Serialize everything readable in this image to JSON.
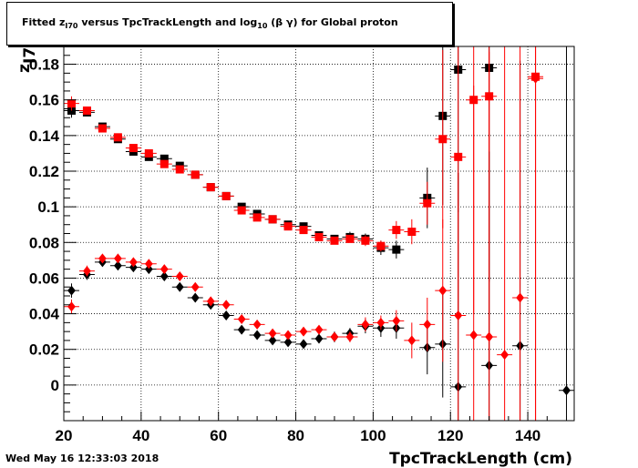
{
  "title": {
    "part1": "Fitted  z",
    "sub1": "I70",
    "part2": "  versus TpcTrackLength and log",
    "sub2": "10",
    "part3": " (β γ) for Global proton"
  },
  "footer": {
    "timestamp": "Wed May 16 12:33:03 2018"
  },
  "colors": {
    "black_series": "#000000",
    "red_series": "#ff0000",
    "grid": "#000000"
  },
  "chart_data": {
    "type": "scatter",
    "title": "Fitted z_I70 versus TpcTrackLength and log10 (β γ) for Global proton",
    "xlabel": "TpcTrackLength (cm)",
    "ylabel": "z_I70",
    "xlim": [
      20,
      152
    ],
    "ylim": [
      -0.02,
      0.19
    ],
    "xticks": [
      20,
      40,
      60,
      80,
      100,
      120,
      140
    ],
    "yticks": [
      0,
      0.02,
      0.04,
      0.06,
      0.08,
      0.1,
      0.12,
      0.14,
      0.16,
      0.18
    ],
    "ytick_labels": [
      "0",
      "0.02",
      "0.04",
      "0.06",
      "0.08",
      "0.1",
      "0.12",
      "0.14",
      "0.16",
      "0.18"
    ],
    "grid": true,
    "x_error_half_width": 2,
    "series": [
      {
        "marker": "square",
        "color": "black",
        "x": [
          22,
          26,
          30,
          34,
          38,
          42,
          46,
          50,
          54,
          58,
          62,
          66,
          70,
          74,
          78,
          82,
          86,
          90,
          94,
          98,
          102,
          106,
          114,
          118,
          122,
          130
        ],
        "y": [
          0.154,
          0.153,
          0.145,
          0.138,
          0.131,
          0.128,
          0.127,
          0.123,
          0.118,
          0.111,
          0.106,
          0.1,
          0.096,
          0.093,
          0.09,
          0.089,
          0.084,
          0.082,
          0.083,
          0.082,
          0.077,
          0.076,
          0.105,
          0.151,
          0.177,
          0.178
        ],
        "yerr": [
          0.004,
          0.002,
          0.002,
          0.002,
          0.002,
          0.002,
          0.002,
          0.002,
          0.002,
          0.002,
          0.002,
          0.002,
          0.002,
          0.002,
          0.002,
          0.002,
          0.002,
          0.002,
          0.003,
          0.003,
          0.004,
          0.005,
          0.017,
          0.05,
          0.08,
          0.12
        ]
      },
      {
        "marker": "square",
        "color": "red",
        "x": [
          22,
          26,
          30,
          34,
          38,
          42,
          46,
          50,
          54,
          58,
          62,
          66,
          70,
          74,
          78,
          82,
          86,
          90,
          94,
          98,
          102,
          106,
          110,
          114,
          118,
          122,
          126,
          130,
          142
        ],
        "y": [
          0.158,
          0.154,
          0.144,
          0.139,
          0.133,
          0.13,
          0.124,
          0.121,
          0.118,
          0.111,
          0.106,
          0.098,
          0.094,
          0.093,
          0.089,
          0.087,
          0.083,
          0.081,
          0.082,
          0.081,
          0.078,
          0.087,
          0.086,
          0.102,
          0.138,
          0.128,
          0.16,
          0.162,
          0.173
        ],
        "yerr": [
          0.004,
          0.002,
          0.002,
          0.002,
          0.002,
          0.002,
          0.002,
          0.002,
          0.002,
          0.002,
          0.002,
          0.002,
          0.002,
          0.002,
          0.002,
          0.002,
          0.002,
          0.002,
          0.002,
          0.003,
          0.003,
          0.005,
          0.007,
          0.012,
          0.05,
          0.09,
          0.12,
          0.15,
          0.2
        ]
      },
      {
        "marker": "diamond",
        "color": "black",
        "x": [
          22,
          26,
          30,
          34,
          38,
          42,
          46,
          50,
          54,
          58,
          62,
          66,
          70,
          74,
          78,
          82,
          86,
          90,
          94,
          98,
          102,
          106,
          114,
          118,
          122,
          130,
          138,
          150
        ],
        "y": [
          0.053,
          0.062,
          0.069,
          0.067,
          0.066,
          0.065,
          0.061,
          0.055,
          0.049,
          0.045,
          0.039,
          0.031,
          0.028,
          0.025,
          0.024,
          0.023,
          0.026,
          0.027,
          0.029,
          0.033,
          0.032,
          0.032,
          0.021,
          0.023,
          -0.001,
          0.011,
          0.022,
          -0.003
        ],
        "yerr": [
          0.004,
          0.003,
          0.002,
          0.002,
          0.002,
          0.002,
          0.002,
          0.002,
          0.002,
          0.002,
          0.002,
          0.002,
          0.002,
          0.002,
          0.002,
          0.002,
          0.002,
          0.003,
          0.003,
          0.004,
          0.005,
          0.006,
          0.015,
          0.03,
          0.12,
          0.12,
          0.16,
          0.2
        ]
      },
      {
        "marker": "diamond",
        "color": "red",
        "x": [
          22,
          26,
          30,
          34,
          38,
          42,
          46,
          50,
          54,
          58,
          62,
          66,
          70,
          74,
          78,
          82,
          86,
          90,
          94,
          98,
          102,
          106,
          110,
          114,
          118,
          122,
          126,
          130,
          134,
          138,
          142
        ],
        "y": [
          0.044,
          0.064,
          0.071,
          0.071,
          0.069,
          0.068,
          0.065,
          0.061,
          0.055,
          0.047,
          0.045,
          0.037,
          0.034,
          0.029,
          0.028,
          0.03,
          0.031,
          0.027,
          0.027,
          0.034,
          0.035,
          0.036,
          0.025,
          0.034,
          0.053,
          0.039,
          0.028,
          0.027,
          0.017,
          0.049,
          0.172
        ],
        "yerr": [
          0.004,
          0.003,
          0.002,
          0.002,
          0.002,
          0.002,
          0.002,
          0.002,
          0.002,
          0.002,
          0.002,
          0.002,
          0.002,
          0.002,
          0.002,
          0.002,
          0.002,
          0.002,
          0.003,
          0.004,
          0.004,
          0.006,
          0.01,
          0.015,
          0.04,
          0.08,
          0.14,
          0.16,
          0.2,
          0.2,
          0.3
        ]
      }
    ]
  }
}
